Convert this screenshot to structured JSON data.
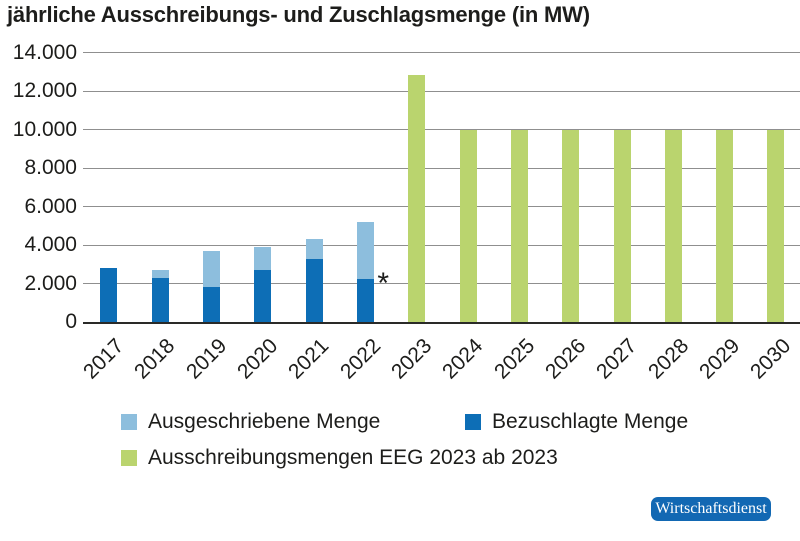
{
  "title": "jährliche Ausschreibungs- und Zuschlagsmenge (in MW)",
  "chart_data": {
    "type": "bar",
    "stacked": true,
    "unit": "MW",
    "title": "jährliche Ausschreibungs- und Zuschlagsmenge (in MW)",
    "categories": [
      "2017",
      "2018",
      "2019",
      "2020",
      "2021",
      "2022",
      "2023",
      "2024",
      "2025",
      "2026",
      "2027",
      "2028",
      "2029",
      "2030"
    ],
    "series": [
      {
        "name": "Ausgeschriebene Menge",
        "role": "tendered-total",
        "color": "#8dbedd",
        "values": [
          2800,
          2700,
          3700,
          3900,
          4300,
          5200,
          null,
          null,
          null,
          null,
          null,
          null,
          null,
          null
        ]
      },
      {
        "name": "Bezuschlagte Menge",
        "role": "awarded",
        "color": "#0d6eb6",
        "values": [
          2800,
          2300,
          1800,
          2700,
          3300,
          2250,
          null,
          null,
          null,
          null,
          null,
          null,
          null,
          null
        ]
      },
      {
        "name": "Ausschreibungsmengen EEG 2023 ab 2023",
        "role": "eeg-2023",
        "color": "#bad46e",
        "values": [
          null,
          null,
          null,
          null,
          null,
          null,
          12840,
          10000,
          10000,
          10000,
          10000,
          10000,
          10000,
          10000
        ]
      }
    ],
    "ylim": [
      0,
      14000
    ],
    "yticks": [
      {
        "value": 0,
        "label": "0"
      },
      {
        "value": 2000,
        "label": "2.000"
      },
      {
        "value": 4000,
        "label": "4.000"
      },
      {
        "value": 6000,
        "label": "6.000"
      },
      {
        "value": 8000,
        "label": "8.000"
      },
      {
        "value": 10000,
        "label": "10.000"
      },
      {
        "value": 12000,
        "label": "12.000"
      },
      {
        "value": 14000,
        "label": "14.000"
      }
    ],
    "grid": "horizontal",
    "legend_position": "bottom",
    "footnote": {
      "category": "2022",
      "marker": "*"
    }
  },
  "legend": {
    "items": [
      {
        "label": "Ausgeschriebene Menge",
        "color": "#8dbedd"
      },
      {
        "label": "Bezuschlagte Menge",
        "color": "#0d6eb6"
      },
      {
        "label": "Ausschreibungsmengen EEG 2023 ab 2023",
        "color": "#bad46e"
      }
    ]
  },
  "badge": {
    "label": "Wirtschaftsdienst",
    "background": "#1268b3"
  }
}
